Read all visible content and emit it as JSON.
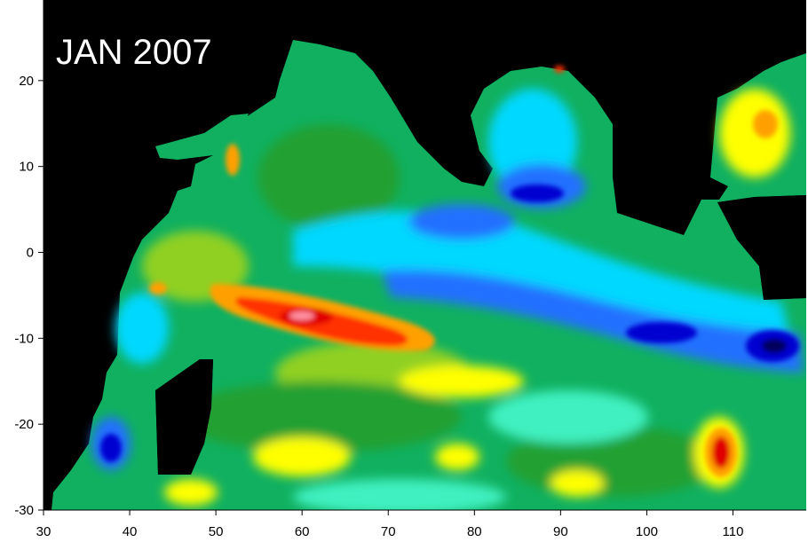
{
  "chart_data": {
    "type": "heatmap",
    "title": "JAN 2007",
    "xlabel": "",
    "ylabel": "",
    "xlim": [
      30,
      118.5
    ],
    "ylim": [
      -30,
      30
    ],
    "x_ticks": [
      30,
      40,
      50,
      60,
      70,
      80,
      90,
      100,
      110
    ],
    "y_ticks": [
      30,
      20,
      10,
      0,
      -10,
      -20,
      -30
    ],
    "x_tick_labels": [
      "30",
      "40",
      "50",
      "60",
      "70",
      "80",
      "90",
      "100",
      "110"
    ],
    "y_tick_labels": [
      "30",
      "20",
      "10",
      "0",
      "-10",
      "-20",
      "-30"
    ],
    "background_color": "#000000",
    "colormap": [
      "#00005a",
      "#0000d0",
      "#2070ff",
      "#00d8ff",
      "#40f0c0",
      "#10c070",
      "#20a030",
      "#90d020",
      "#ffff00",
      "#ffa000",
      "#ff3000",
      "#e00000",
      "#ff90a0"
    ],
    "grid": false,
    "legend": "none"
  }
}
